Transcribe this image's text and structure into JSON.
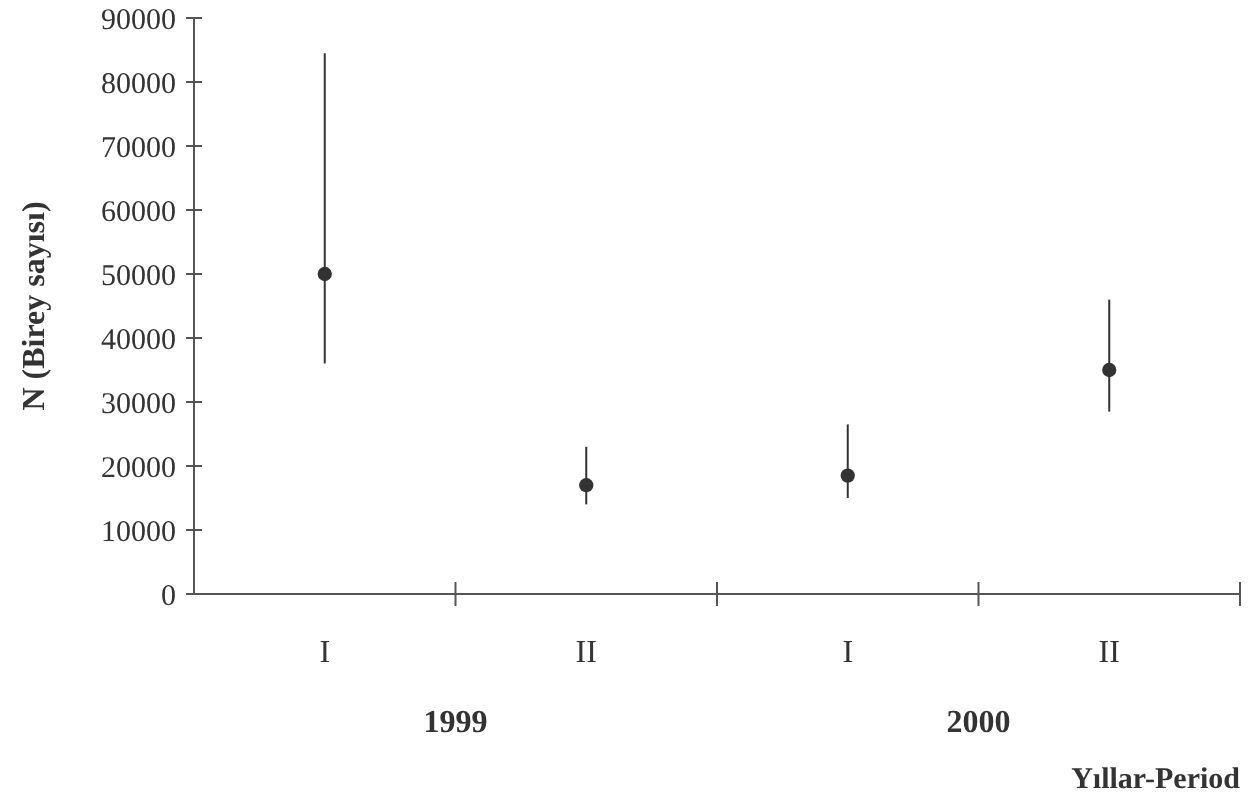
{
  "chart_data": {
    "type": "scatter",
    "xlabel": "Yıllar-Period",
    "ylabel": "N (Birey sayısı)",
    "categories": [
      "I",
      "II",
      "I",
      "II"
    ],
    "series": [
      {
        "color": "#333333",
        "values": [
          50000,
          17000,
          18500,
          35000
        ],
        "errors": [
          [
            36000,
            84500
          ],
          [
            14000,
            23000
          ],
          [
            15000,
            26500
          ],
          [
            28500,
            46000
          ]
        ]
      }
    ],
    "ylim": [
      0,
      90000
    ],
    "yticks": [
      0,
      10000,
      20000,
      30000,
      40000,
      50000,
      60000,
      70000,
      80000,
      90000
    ],
    "marker": "circle",
    "grid": false,
    "annotations": [
      "1999",
      "2000"
    ]
  }
}
